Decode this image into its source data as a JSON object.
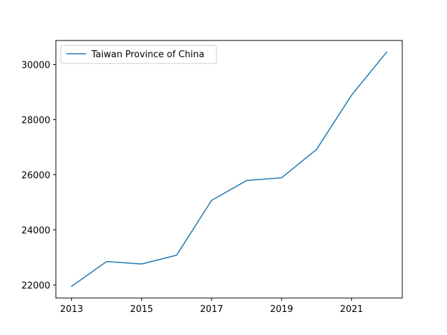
{
  "chart_data": {
    "type": "line",
    "title": "",
    "xlabel": "",
    "ylabel": "",
    "x": [
      2013,
      2014,
      2015,
      2016,
      2017,
      2018,
      2019,
      2020,
      2021,
      2022
    ],
    "series": [
      {
        "name": "Taiwan Province of China",
        "color": "#1f77b4",
        "values": [
          21950,
          22850,
          22760,
          23080,
          25070,
          25790,
          25890,
          26920,
          28890,
          30450
        ]
      }
    ],
    "xlim": [
      2012.55,
      2022.45
    ],
    "ylim": [
      21525,
      30875
    ],
    "xticks": [
      "2013",
      "2015",
      "2017",
      "2019",
      "2021"
    ],
    "yticks": [
      "22000",
      "24000",
      "26000",
      "28000",
      "30000"
    ],
    "grid": false,
    "legend_position": "top-left"
  }
}
